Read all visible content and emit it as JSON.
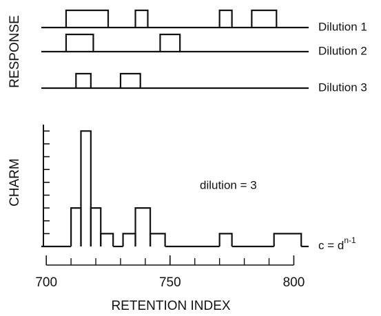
{
  "chart_data": [
    {
      "type": "step",
      "ylabel": "RESPONSE",
      "xlim": [
        698,
        806
      ],
      "series": [
        {
          "name": "Dilution 1",
          "color": "#111111",
          "intervals": [
            [
              708,
              725
            ],
            [
              736,
              741
            ],
            [
              770,
              775
            ],
            [
              783,
              793
            ]
          ]
        },
        {
          "name": "Dilution 2",
          "color": "#111111",
          "intervals": [
            [
              708,
              719
            ],
            [
              746,
              754
            ]
          ]
        },
        {
          "name": "Dilution 3",
          "color": "#111111",
          "intervals": [
            [
              712,
              718
            ],
            [
              730,
              738
            ]
          ]
        }
      ]
    },
    {
      "type": "histogram",
      "ylabel": "CHARM",
      "xlabel": "RETENTION INDEX",
      "color": "#111111",
      "xlim": [
        698,
        806
      ],
      "xticks": [
        700,
        750,
        800
      ],
      "xminor_ticks": [
        710,
        720,
        730,
        740,
        760,
        770,
        780,
        790
      ],
      "ylim": [
        0,
        9.5
      ],
      "yminor_ticks": [
        1,
        2,
        3,
        4,
        5,
        6,
        7,
        8,
        9
      ],
      "bins": [
        698,
        710,
        714,
        718,
        722,
        727,
        731,
        736,
        742,
        748,
        770,
        775,
        792,
        803,
        806
      ],
      "counts": [
        0,
        3,
        9,
        3,
        1,
        0,
        1,
        3,
        1,
        0,
        1,
        0,
        1,
        0
      ],
      "annotation": "dilution = 3",
      "formula": {
        "base": "c = d",
        "exponent": "n-1"
      }
    }
  ]
}
